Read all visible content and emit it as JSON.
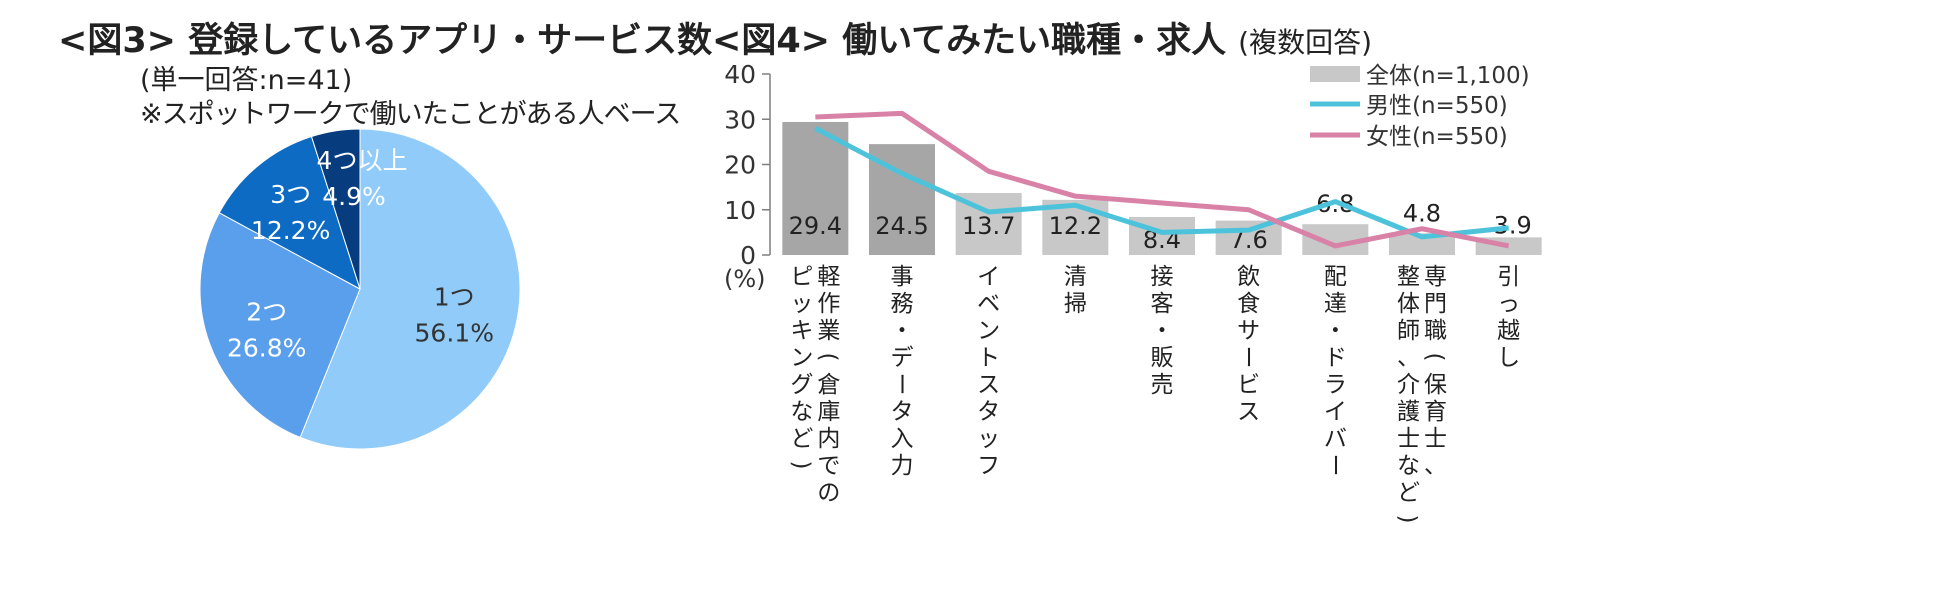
{
  "chart_data": [
    {
      "type": "pie",
      "title": "<図3> 登録しているアプリ・サービス数",
      "subtitle": "(単一回答:n=41)",
      "note": "※スポットワークで働いたことがある人ベース",
      "slices": [
        {
          "label": "1つ",
          "value": 56.1,
          "display": "56.1%",
          "color": "#90CBFA",
          "text_color": "#333333"
        },
        {
          "label": "2つ",
          "value": 26.8,
          "display": "26.8%",
          "color": "#5A9FEB",
          "text_color": "#ffffff"
        },
        {
          "label": "3つ",
          "value": 12.2,
          "display": "12.2%",
          "color": "#0E6BC4",
          "text_color": "#ffffff"
        },
        {
          "label": "4つ以上",
          "value": 4.9,
          "display": "4.9%",
          "color": "#073C7E",
          "text_color": "#ffffff"
        }
      ]
    },
    {
      "type": "bar",
      "title": "<図4> 働いてみたい職種・求人",
      "subtitle": "(複数回答)",
      "ylabel": "(%)",
      "ylim": [
        0,
        40
      ],
      "yticks": [
        0,
        10,
        20,
        30,
        40
      ],
      "categories": [
        [
          "軽作業(倉庫内での",
          "ピッキングなど)"
        ],
        [
          "事務・データ入力"
        ],
        [
          "イベントスタッフ"
        ],
        [
          "清掃"
        ],
        [
          "接客・販売"
        ],
        [
          "飲食サービス"
        ],
        [
          "配達・ドライバー"
        ],
        [
          "専門職(保育士、",
          "整体師、介護士など)"
        ],
        [
          "引っ越し"
        ]
      ],
      "series": [
        {
          "name": "全体(n=1,100)",
          "kind": "bar",
          "values": [
            29.4,
            24.5,
            13.7,
            12.2,
            8.4,
            7.6,
            6.8,
            4.8,
            3.9
          ],
          "labels": [
            "29.4",
            "24.5",
            "13.7",
            "12.2",
            "8.4",
            "7.6",
            "6.8",
            "4.8",
            "3.9"
          ],
          "highlight_color": "#A6A6A6",
          "color": "#C8C8C8"
        },
        {
          "name": "男性(n=550)",
          "kind": "line",
          "values": [
            28.0,
            18.0,
            9.5,
            11.0,
            5.0,
            5.5,
            11.8,
            4.0,
            6.0
          ],
          "color": "#4CC3DA"
        },
        {
          "name": "女性(n=550)",
          "kind": "line",
          "values": [
            30.5,
            31.3,
            18.5,
            13.0,
            11.5,
            10.0,
            2.0,
            5.8,
            2.0
          ],
          "color": "#D982A8"
        }
      ],
      "legend": "top-right"
    }
  ]
}
